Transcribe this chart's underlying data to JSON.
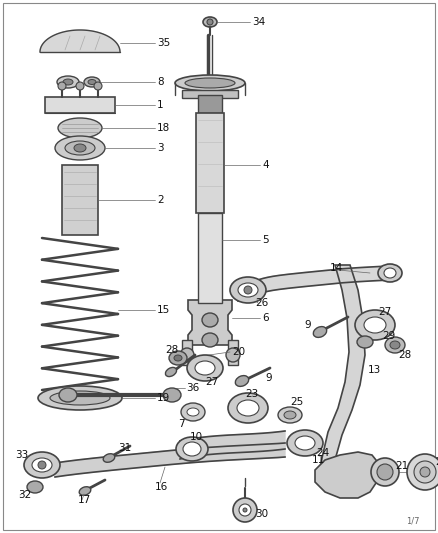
{
  "bg_color": "#ffffff",
  "border_color": "#aaaaaa",
  "line_color": "#444444",
  "label_color": "#222222",
  "fig_w": 4.38,
  "fig_h": 5.33,
  "dpi": 100
}
